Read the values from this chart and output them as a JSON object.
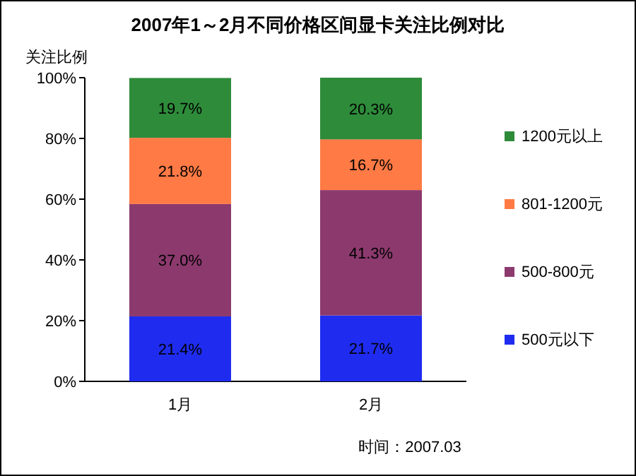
{
  "chart_data": {
    "type": "bar",
    "stacked": true,
    "title": "2007年1～2月不同价格区间显卡关注比例对比",
    "ylabel": "关注比例",
    "categories": [
      "1月",
      "2月"
    ],
    "series": [
      {
        "name": "500元以下",
        "color": "#1f2cf0",
        "values": [
          21.4,
          21.7
        ],
        "value_labels": [
          "21.4%",
          "21.7%"
        ]
      },
      {
        "name": "500-800元",
        "color": "#8c3a6e",
        "values": [
          37.0,
          41.3
        ],
        "value_labels": [
          "37.0%",
          "41.3%"
        ]
      },
      {
        "name": "801-1200元",
        "color": "#ff7a45",
        "values": [
          21.8,
          16.7
        ],
        "value_labels": [
          "21.8%",
          "16.7%"
        ]
      },
      {
        "name": "1200元以上",
        "color": "#2e8b3a",
        "values": [
          19.7,
          20.3
        ],
        "value_labels": [
          "19.7%",
          "20.3%"
        ]
      }
    ],
    "ylim": [
      0,
      100
    ],
    "yticks": [
      {
        "value": 0,
        "label": "0%"
      },
      {
        "value": 20,
        "label": "20%"
      },
      {
        "value": 40,
        "label": "40%"
      },
      {
        "value": 60,
        "label": "60%"
      },
      {
        "value": 80,
        "label": "80%"
      },
      {
        "value": 100,
        "label": "100%"
      }
    ],
    "grid": false,
    "legend": "right",
    "annotations": [
      "时间：2007.03"
    ]
  }
}
